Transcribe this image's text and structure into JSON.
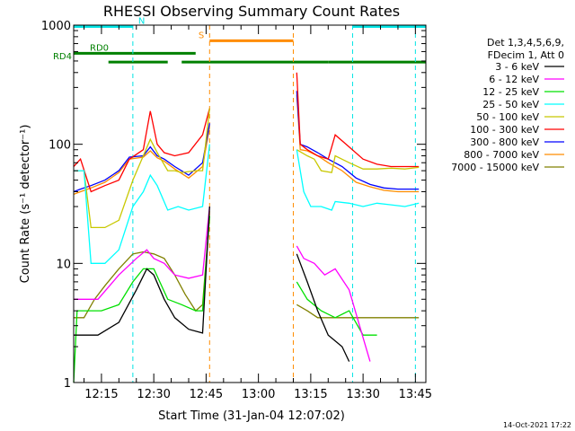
{
  "chart_data": {
    "type": "line",
    "title": "RHESSI Observing Summary Count Rates",
    "xlabel": "Start Time (31-Jan-04 12:07:02)",
    "ylabel": "Count Rate (s⁻¹ detector⁻¹)",
    "y_scale": "log",
    "ylim": [
      1,
      1000
    ],
    "xlim": [
      "12:07:02",
      "13:48:00"
    ],
    "x_ticks": [
      "12:15",
      "12:30",
      "12:45",
      "13:00",
      "13:15",
      "13:30",
      "13:45"
    ],
    "y_ticks": [
      "1",
      "10",
      "100",
      "1000"
    ],
    "grid": false,
    "legend_position": "right",
    "legend_header": [
      "Det 1,3,4,5,6,9,",
      "FDecim 1, Att 0"
    ],
    "timestamp": "14-Oct-2021 17:22",
    "data_gap": [
      "12:46",
      "13:10"
    ],
    "night_lines_color": "#00e5e5",
    "night_lines_x": [
      "12:24",
      "13:27",
      "13:45"
    ],
    "saa_lines_color": "#ff8c00",
    "saa_lines_x": [
      "12:46",
      "13:10"
    ],
    "flag_bars": [
      {
        "label": "N",
        "color": "#00e5e5",
        "segments": [
          [
            "12:07",
            "12:24"
          ],
          [
            "13:27",
            "13:48"
          ]
        ],
        "level": 975
      },
      {
        "label": "S",
        "color": "#ff8c00",
        "segments": [
          [
            "12:46",
            "13:10"
          ]
        ],
        "level": 740
      },
      {
        "label": "RD0",
        "color": "#008000",
        "segments": [
          [
            "12:07",
            "12:42"
          ]
        ],
        "level": 580
      },
      {
        "label": "RD4",
        "color": "#008000",
        "segments": [
          [
            "12:17",
            "12:34"
          ],
          [
            "12:38",
            "13:10"
          ],
          [
            "13:10",
            "13:20"
          ],
          [
            "13:20",
            "13:48"
          ]
        ],
        "level": 490
      }
    ],
    "series": [
      {
        "name": "3 - 6 keV",
        "color": "#000000",
        "x": [
          "12:07",
          "12:14",
          "12:20",
          "12:25",
          "12:28",
          "12:30",
          "12:33",
          "12:36",
          "12:40",
          "12:44",
          "12:46",
          "13:11",
          "13:14",
          "13:17",
          "13:20",
          "13:24",
          "13:26"
        ],
        "y": [
          2.5,
          2.5,
          3.2,
          6,
          9,
          8,
          5,
          3.5,
          2.8,
          2.6,
          30,
          12,
          7,
          4,
          2.5,
          2.0,
          1.5
        ]
      },
      {
        "name": "6 - 12 keV",
        "color": "#ff00ff",
        "x": [
          "12:07",
          "12:14",
          "12:20",
          "12:25",
          "12:28",
          "12:30",
          "12:33",
          "12:36",
          "12:40",
          "12:44",
          "12:46",
          "13:11",
          "13:13",
          "13:16",
          "13:19",
          "13:22",
          "13:26",
          "13:29",
          "13:32"
        ],
        "y": [
          5,
          5,
          8,
          11,
          13,
          11,
          10,
          8,
          7.5,
          8,
          30,
          14,
          11,
          10,
          8,
          9,
          6,
          3,
          1.5
        ]
      },
      {
        "name": "12 - 25 keV",
        "color": "#00e000",
        "x": [
          "12:07",
          "12:08",
          "12:10",
          "12:15",
          "12:20",
          "12:24",
          "12:27",
          "12:30",
          "12:34",
          "12:38",
          "12:42",
          "12:44",
          "12:46",
          "13:11",
          "13:14",
          "13:18",
          "13:22",
          "13:26",
          "13:30",
          "13:34"
        ],
        "y": [
          1,
          4,
          4,
          4,
          4.5,
          7,
          9,
          9,
          5,
          4.5,
          4,
          4,
          25,
          7,
          5,
          4,
          3.5,
          4,
          2.5,
          2.5
        ]
      },
      {
        "name": "25 - 50 keV",
        "color": "#00ffff",
        "x": [
          "12:07",
          "12:10",
          "12:12",
          "12:16",
          "12:20",
          "12:24",
          "12:27",
          "12:29",
          "12:31",
          "12:34",
          "12:37",
          "12:40",
          "12:44",
          "12:46",
          "13:11",
          "13:13",
          "13:15",
          "13:18",
          "13:21",
          "13:22",
          "13:26",
          "13:30",
          "13:34",
          "13:38",
          "13:42",
          "13:46"
        ],
        "y": [
          60,
          60,
          10,
          10,
          13,
          30,
          40,
          55,
          45,
          28,
          30,
          28,
          30,
          100,
          90,
          40,
          30,
          30,
          28,
          33,
          32,
          30,
          32,
          31,
          30,
          32
        ]
      },
      {
        "name": "50 - 100 keV",
        "color": "#c8c800",
        "x": [
          "12:07",
          "12:10",
          "12:12",
          "12:16",
          "12:20",
          "12:24",
          "12:27",
          "12:29",
          "12:31",
          "12:34",
          "12:36",
          "12:38",
          "12:42",
          "12:44",
          "12:46",
          "13:11",
          "13:14",
          "13:16",
          "13:18",
          "13:21",
          "13:22",
          "13:26",
          "13:30",
          "13:34",
          "13:38",
          "13:42",
          "13:46"
        ],
        "y": [
          60,
          60,
          20,
          20,
          23,
          50,
          80,
          110,
          85,
          60,
          60,
          58,
          60,
          60,
          200,
          90,
          80,
          75,
          60,
          58,
          80,
          70,
          62,
          62,
          63,
          62,
          64
        ]
      },
      {
        "name": "100 - 300 keV",
        "color": "#ff0000",
        "x": [
          "12:07",
          "12:09",
          "12:12",
          "12:16",
          "12:20",
          "12:23",
          "12:27",
          "12:29",
          "12:31",
          "12:33",
          "12:36",
          "12:40",
          "12:44",
          "12:46",
          "13:11",
          "13:12",
          "13:14",
          "13:17",
          "13:20",
          "13:22",
          "13:26",
          "13:30",
          "13:34",
          "13:38",
          "13:42",
          "13:46"
        ],
        "y": [
          65,
          75,
          40,
          45,
          50,
          75,
          90,
          190,
          100,
          85,
          80,
          85,
          120,
          200,
          400,
          100,
          90,
          80,
          75,
          120,
          95,
          75,
          68,
          65,
          65,
          65
        ]
      },
      {
        "name": "300 - 800 keV",
        "color": "#0000ff",
        "x": [
          "12:07",
          "12:09",
          "12:12",
          "12:16",
          "12:20",
          "12:23",
          "12:27",
          "12:29",
          "12:31",
          "12:33",
          "12:36",
          "12:40",
          "12:44",
          "12:46",
          "13:11",
          "13:12",
          "13:14",
          "13:17",
          "13:20",
          "13:24",
          "13:28",
          "13:32",
          "13:36",
          "13:40",
          "13:46"
        ],
        "y": [
          40,
          42,
          45,
          50,
          60,
          78,
          80,
          95,
          80,
          75,
          65,
          55,
          70,
          150,
          280,
          100,
          95,
          85,
          75,
          65,
          52,
          46,
          43,
          42,
          42
        ]
      },
      {
        "name": "800 - 7000 keV",
        "color": "#ff8c00",
        "x": [
          "12:07",
          "12:09",
          "12:12",
          "12:16",
          "12:20",
          "12:23",
          "12:27",
          "12:29",
          "12:31",
          "12:33",
          "12:36",
          "12:40",
          "12:44",
          "12:46",
          "13:11",
          "13:12",
          "13:14",
          "13:17",
          "13:20",
          "13:24",
          "13:28",
          "13:32",
          "13:36",
          "13:40",
          "13:46"
        ],
        "y": [
          38,
          40,
          43,
          48,
          58,
          75,
          78,
          88,
          77,
          72,
          62,
          52,
          65,
          140,
          260,
          90,
          88,
          80,
          70,
          60,
          48,
          44,
          41,
          40,
          40
        ]
      },
      {
        "name": "7000 - 15000 keV",
        "color": "#808000",
        "x": [
          "12:07",
          "12:10",
          "12:13",
          "12:16",
          "12:20",
          "12:24",
          "12:27",
          "12:30",
          "12:33",
          "12:36",
          "12:39",
          "12:42",
          "12:44",
          "12:46",
          "13:11",
          "13:14",
          "13:17",
          "13:20",
          "13:24",
          "13:28",
          "13:32",
          "13:36",
          "13:40",
          "13:46"
        ],
        "y": [
          3.5,
          3.5,
          5,
          6.5,
          9,
          12,
          12.5,
          12,
          11,
          8,
          5.5,
          4,
          4.5,
          25,
          4.5,
          4,
          3.5,
          3.5,
          3.5,
          3.5,
          3.5,
          3.5,
          3.5,
          3.5
        ]
      }
    ]
  }
}
